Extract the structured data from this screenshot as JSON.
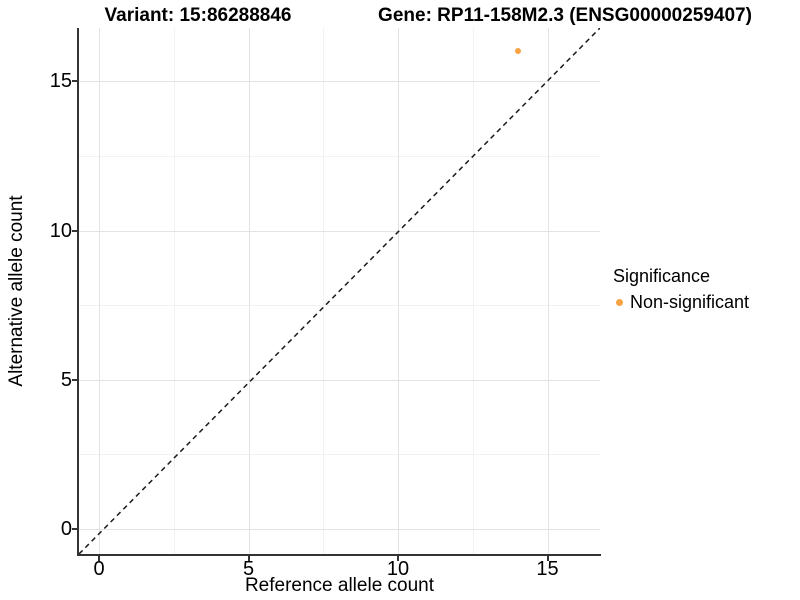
{
  "titles": {
    "variant": "Variant: 15:86288846",
    "gene": "Gene: RP11-158M2.3 (ENSG00000259407)"
  },
  "axes": {
    "x_label": "Reference allele count",
    "y_label": "Alternative allele count"
  },
  "legend": {
    "title": "Significance",
    "items": [
      {
        "label": "Non-significant",
        "color": "#F9A242"
      }
    ]
  },
  "colors": {
    "point": "#F9A242",
    "grid_major": "#e3e3e3",
    "grid_minor": "#f2f2f2",
    "axis_line": "#333333",
    "dashed_line": "#1a1a1a"
  },
  "chart_data": {
    "type": "scatter",
    "title": "Variant: 15:86288846 — Gene: RP11-158M2.3 (ENSG00000259407)",
    "xlabel": "Reference allele count",
    "ylabel": "Alternative allele count",
    "xlim": [
      -0.8,
      16.8
    ],
    "ylim": [
      -0.8,
      16.8
    ],
    "x_ticks": [
      0,
      5,
      10,
      15
    ],
    "y_ticks": [
      0,
      5,
      10,
      15
    ],
    "x_minor_ticks": [
      2.5,
      7.5,
      12.5
    ],
    "y_minor_ticks": [
      2.5,
      7.5,
      12.5
    ],
    "grid": true,
    "legend_position": "right",
    "reference_line": {
      "type": "identity",
      "equation": "y = x",
      "style": "dashed",
      "color": "#1a1a1a"
    },
    "series": [
      {
        "name": "Non-significant",
        "color": "#F9A242",
        "points": [
          {
            "x": 14,
            "y": 16
          }
        ]
      }
    ]
  }
}
